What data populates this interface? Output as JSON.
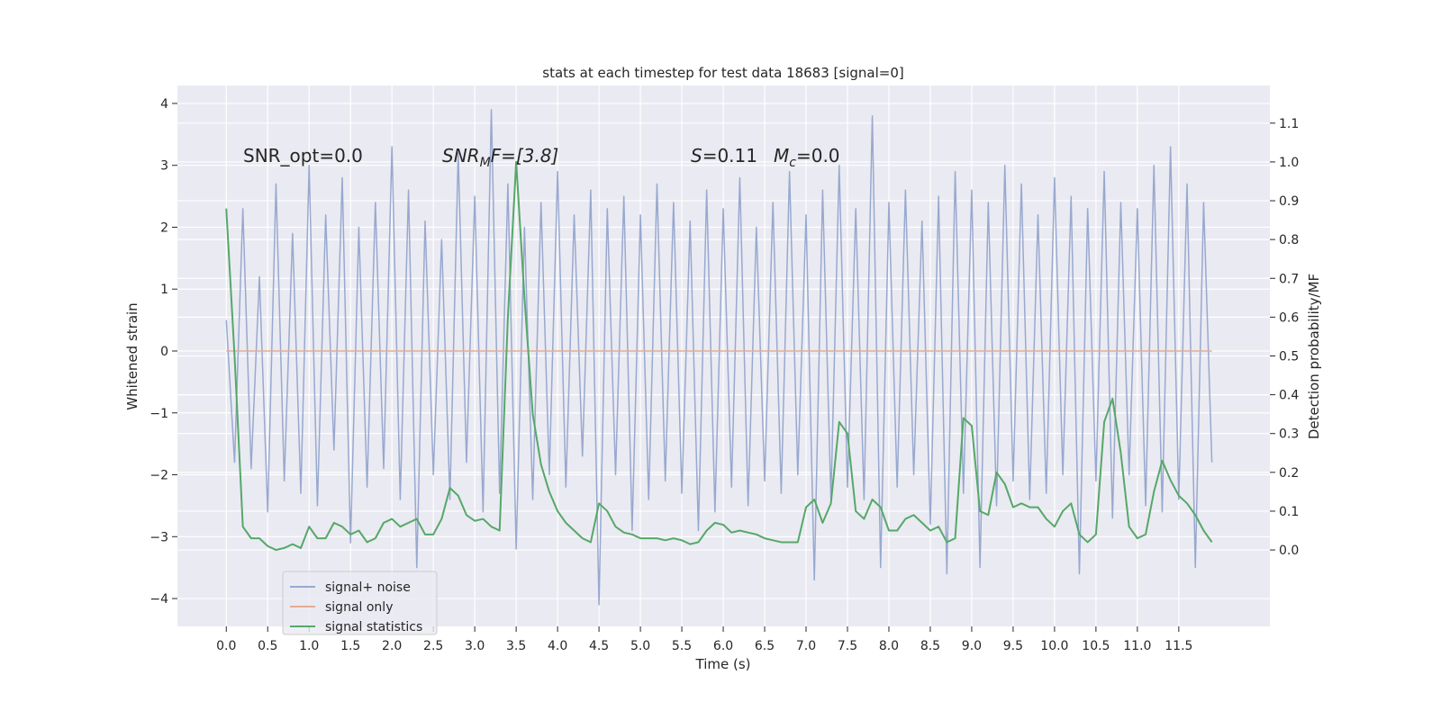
{
  "chart_data": {
    "type": "line",
    "title": "stats at each timestep for test data 18683 [signal=0]",
    "xlabel": "Time (s)",
    "ylabel": "Whitened strain",
    "y2label": "Detection probability/MF",
    "annotations": {
      "snr_opt": "SNR_opt=0.0",
      "snr_mf": {
        "main": "SNR",
        "sub": "M",
        "rest": "F=[3.8]"
      },
      "s": {
        "main": "S",
        "rest": "=0.11"
      },
      "mc": {
        "main": "M",
        "sub": "c",
        "rest": "=0.0"
      }
    },
    "grid": true,
    "xlim": [
      -0.59,
      12.6
    ],
    "ylim": [
      -4.45,
      4.29
    ],
    "y2lim": [
      -0.197,
      1.197
    ],
    "xticks": [
      {
        "value": 0,
        "label": "0.0"
      },
      0.5,
      {
        "value": 1,
        "label": "1.0"
      },
      1.5,
      {
        "value": 2,
        "label": "2.0"
      },
      2.5,
      {
        "value": 3,
        "label": "3.0"
      },
      3.5,
      {
        "value": 4,
        "label": "4.0"
      },
      4.5,
      {
        "value": 5,
        "label": "5.0"
      },
      5.5,
      {
        "value": 6,
        "label": "6.0"
      },
      6.5,
      {
        "value": 7,
        "label": "7.0"
      },
      7.5,
      {
        "value": 8,
        "label": "8.0"
      },
      8.5,
      {
        "value": 9,
        "label": "9.0"
      },
      9.5,
      {
        "value": 10,
        "label": "10.0"
      },
      10.5,
      {
        "value": 11,
        "label": "11.0"
      },
      11.5
    ],
    "yticks": [
      {
        "value": -4,
        "label": "−4"
      },
      {
        "value": -3,
        "label": "−3"
      },
      {
        "value": -2,
        "label": "−2"
      },
      {
        "value": -1,
        "label": "−1"
      },
      0,
      1,
      2,
      3,
      4
    ],
    "y2ticks": [
      {
        "value": 0,
        "label": "0.0"
      },
      0.1,
      0.2,
      0.3,
      0.4,
      0.5,
      0.6,
      0.7,
      0.8,
      0.9,
      {
        "value": 1,
        "label": "1.0"
      },
      1.1
    ],
    "x": [
      0.0,
      0.1,
      0.2,
      0.3,
      0.4,
      0.5,
      0.6,
      0.7,
      0.8,
      0.9,
      1.0,
      1.1,
      1.2,
      1.3,
      1.4,
      1.5,
      1.6,
      1.7,
      1.8,
      1.9,
      2.0,
      2.1,
      2.2,
      2.3,
      2.4,
      2.5,
      2.6,
      2.7,
      2.8,
      2.9,
      3.0,
      3.1,
      3.2,
      3.3,
      3.4,
      3.5,
      3.6,
      3.7,
      3.8,
      3.9,
      4.0,
      4.1,
      4.2,
      4.3,
      4.4,
      4.5,
      4.6,
      4.7,
      4.8,
      4.9,
      5.0,
      5.1,
      5.2,
      5.3,
      5.4,
      5.5,
      5.6,
      5.7,
      5.8,
      5.9,
      6.0,
      6.1,
      6.2,
      6.3,
      6.4,
      6.5,
      6.6,
      6.7,
      6.8,
      6.9,
      7.0,
      7.1,
      7.2,
      7.3,
      7.4,
      7.5,
      7.6,
      7.7,
      7.8,
      7.9,
      8.0,
      8.1,
      8.2,
      8.3,
      8.4,
      8.5,
      8.6,
      8.7,
      8.8,
      8.9,
      9.0,
      9.1,
      9.2,
      9.3,
      9.4,
      9.5,
      9.6,
      9.7,
      9.8,
      9.9,
      10.0,
      10.1,
      10.2,
      10.3,
      10.4,
      10.5,
      10.6,
      10.7,
      10.8,
      10.9,
      11.0,
      11.1,
      11.2,
      11.3,
      11.4,
      11.5,
      11.6,
      11.7,
      11.8,
      11.9
    ],
    "series": [
      {
        "name": "signal+ noise",
        "color": "#98a9cf",
        "values": [
          0.5,
          -1.8,
          2.3,
          -1.9,
          1.2,
          -2.6,
          2.7,
          -2.1,
          1.9,
          -2.3,
          3.0,
          -2.5,
          2.2,
          -1.6,
          2.8,
          -3.1,
          2.0,
          -2.2,
          2.4,
          -1.9,
          3.3,
          -2.4,
          2.6,
          -3.5,
          2.1,
          -2.0,
          1.8,
          -2.4,
          3.2,
          -1.8,
          2.5,
          -2.6,
          3.9,
          -2.3,
          2.7,
          -3.2,
          2.0,
          -2.4,
          2.4,
          -2.0,
          2.9,
          -2.2,
          2.2,
          -1.7,
          2.6,
          -4.1,
          2.3,
          -2.0,
          2.5,
          -2.9,
          2.2,
          -2.4,
          2.7,
          -2.1,
          2.4,
          -2.3,
          2.1,
          -2.9,
          2.6,
          -2.6,
          2.3,
          -2.2,
          2.8,
          -2.5,
          2.0,
          -2.1,
          2.4,
          -2.3,
          2.9,
          -2.0,
          2.2,
          -3.7,
          2.6,
          -2.4,
          3.0,
          -2.2,
          2.3,
          -2.4,
          3.8,
          -3.5,
          2.4,
          -2.2,
          2.6,
          -2.0,
          2.1,
          -2.8,
          2.5,
          -3.6,
          2.9,
          -2.3,
          2.6,
          -3.5,
          2.4,
          -2.5,
          3.0,
          -2.1,
          2.7,
          -2.4,
          2.2,
          -2.3,
          2.8,
          -2.0,
          2.5,
          -3.6,
          2.3,
          -2.1,
          2.9,
          -2.7,
          2.4,
          -2.0,
          2.3,
          -2.5,
          3.0,
          -2.6,
          3.3,
          -2.4,
          2.7,
          -3.5,
          2.4,
          -1.8
        ]
      },
      {
        "name": "signal only",
        "color": "#e3ad95",
        "values": [
          0,
          0,
          0,
          0,
          0,
          0,
          0,
          0,
          0,
          0,
          0,
          0,
          0,
          0,
          0,
          0,
          0,
          0,
          0,
          0,
          0,
          0,
          0,
          0,
          0,
          0,
          0,
          0,
          0,
          0,
          0,
          0,
          0,
          0,
          0,
          0,
          0,
          0,
          0,
          0,
          0,
          0,
          0,
          0,
          0,
          0,
          0,
          0,
          0,
          0,
          0,
          0,
          0,
          0,
          0,
          0,
          0,
          0,
          0,
          0,
          0,
          0,
          0,
          0,
          0,
          0,
          0,
          0,
          0,
          0,
          0,
          0,
          0,
          0,
          0,
          0,
          0,
          0,
          0,
          0,
          0,
          0,
          0,
          0,
          0,
          0,
          0,
          0,
          0,
          0,
          0,
          0,
          0,
          0,
          0,
          0,
          0,
          0,
          0,
          0,
          0,
          0,
          0,
          0,
          0,
          0,
          0,
          0,
          0,
          0,
          0,
          0,
          0,
          0,
          0,
          0,
          0,
          0,
          0,
          0
        ]
      },
      {
        "name": "signal statistics",
        "color": "#55a868",
        "axis": "y2",
        "values": [
          0.88,
          0.5,
          0.06,
          0.03,
          0.03,
          0.01,
          0.0,
          0.005,
          0.015,
          0.005,
          0.06,
          0.03,
          0.03,
          0.07,
          0.06,
          0.04,
          0.05,
          0.02,
          0.03,
          0.07,
          0.08,
          0.06,
          0.07,
          0.08,
          0.04,
          0.04,
          0.08,
          0.16,
          0.14,
          0.09,
          0.075,
          0.08,
          0.06,
          0.05,
          0.6,
          1.0,
          0.65,
          0.35,
          0.22,
          0.15,
          0.1,
          0.07,
          0.05,
          0.03,
          0.02,
          0.12,
          0.1,
          0.06,
          0.045,
          0.04,
          0.03,
          0.03,
          0.03,
          0.025,
          0.03,
          0.025,
          0.015,
          0.02,
          0.05,
          0.07,
          0.065,
          0.045,
          0.05,
          0.045,
          0.04,
          0.03,
          0.025,
          0.02,
          0.02,
          0.02,
          0.11,
          0.13,
          0.07,
          0.12,
          0.33,
          0.3,
          0.1,
          0.08,
          0.13,
          0.11,
          0.05,
          0.05,
          0.08,
          0.09,
          0.07,
          0.05,
          0.06,
          0.02,
          0.03,
          0.34,
          0.32,
          0.1,
          0.09,
          0.2,
          0.17,
          0.11,
          0.12,
          0.11,
          0.11,
          0.08,
          0.06,
          0.1,
          0.12,
          0.04,
          0.02,
          0.04,
          0.33,
          0.39,
          0.25,
          0.06,
          0.03,
          0.04,
          0.15,
          0.23,
          0.18,
          0.14,
          0.12,
          0.09,
          0.05,
          0.02
        ]
      }
    ]
  }
}
